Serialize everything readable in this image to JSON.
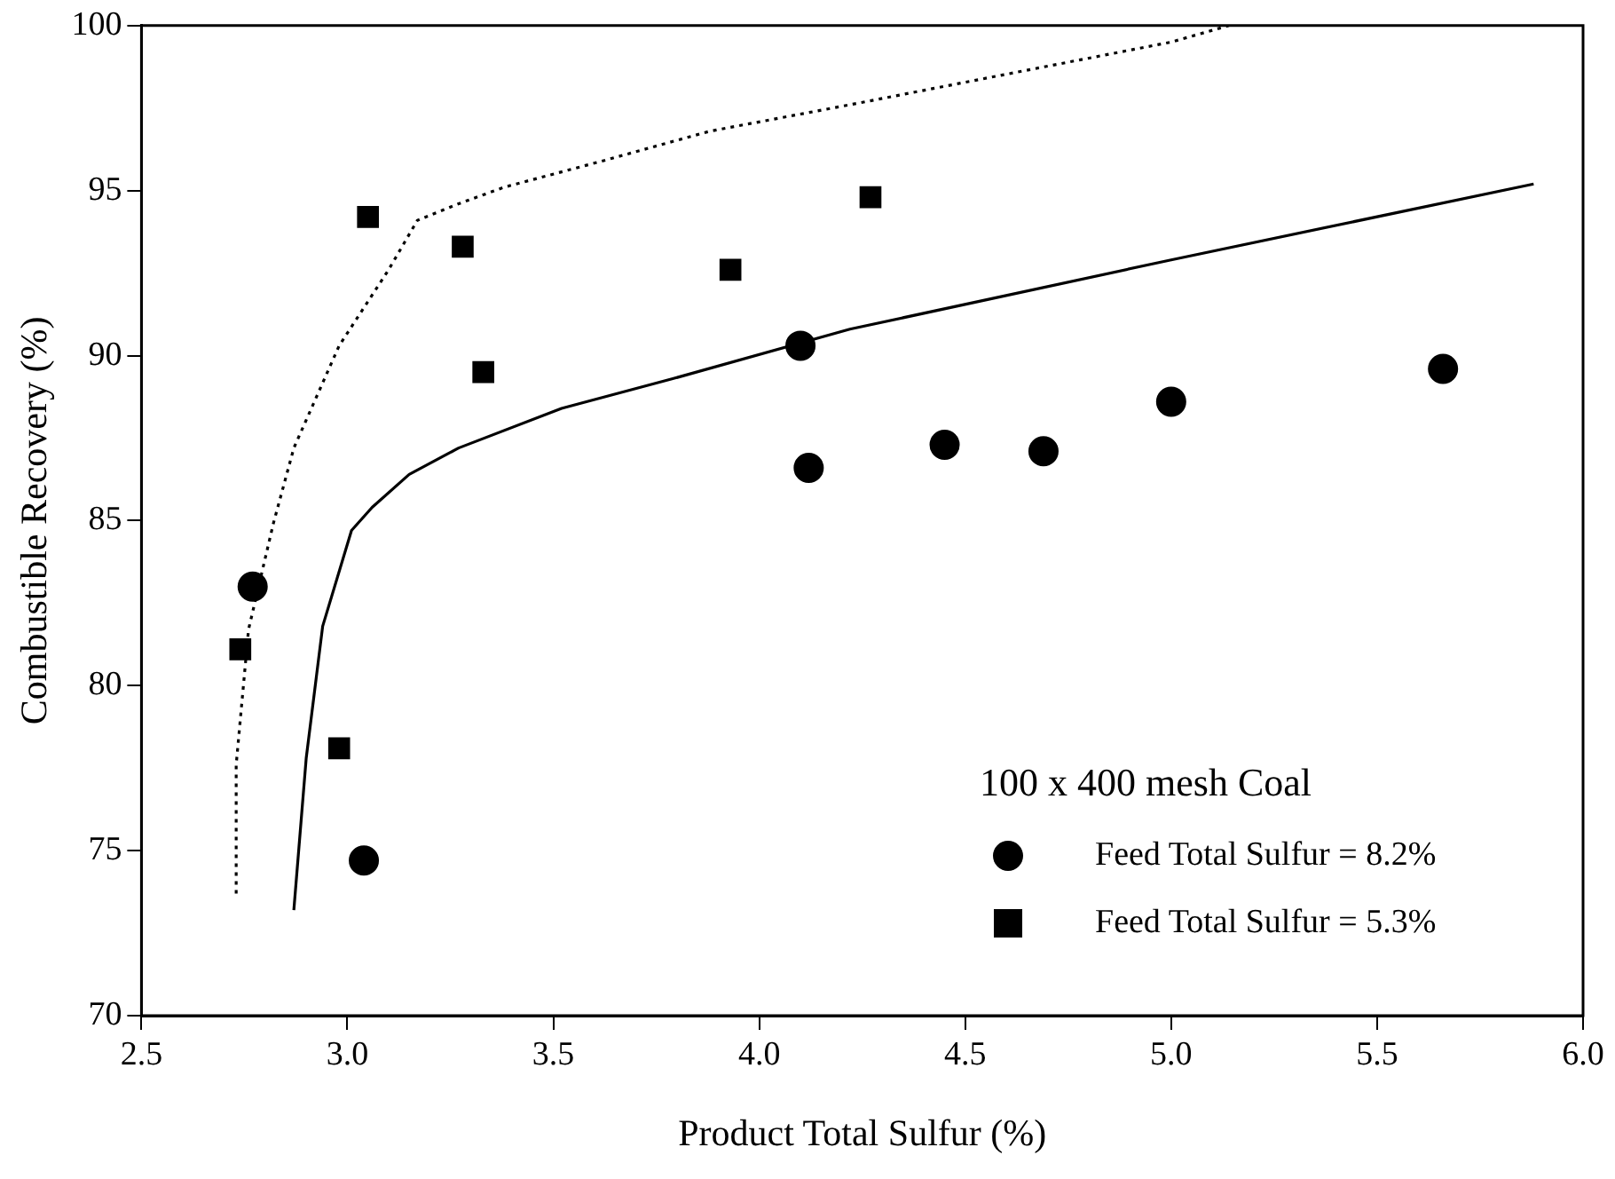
{
  "chart_data": {
    "type": "scatter",
    "xlabel": "Product Total Sulfur (%)",
    "ylabel": "Combustible Recovery (%)",
    "legend_title": "100 x 400 mesh Coal",
    "legend": "bottom right",
    "grid": false,
    "xlim": [
      2.5,
      6.0
    ],
    "xticks": [
      {
        "value": 2.5,
        "label": "2.5"
      },
      {
        "value": 3.0,
        "label": "3.0"
      },
      {
        "value": 3.5,
        "label": "3.5"
      },
      {
        "value": 4.0,
        "label": "4.0"
      },
      {
        "value": 4.5,
        "label": "4.5"
      },
      {
        "value": 5.0,
        "label": "5.0"
      },
      {
        "value": 5.5,
        "label": "5.5"
      },
      {
        "value": 6.0,
        "label": "6.0"
      }
    ],
    "ylim": [
      70,
      100
    ],
    "yticks": [
      70,
      75,
      80,
      85,
      90,
      95,
      100
    ],
    "series": [
      {
        "name": "Feed Total Sulfur = 8.2%",
        "color": "#000000",
        "marker": "circle",
        "x": [
          2.77,
          3.04,
          4.1,
          4.12,
          4.45,
          4.69,
          5.0,
          5.66
        ],
        "values": [
          83.0,
          74.7,
          90.3,
          86.6,
          87.3,
          87.1,
          88.6,
          89.6
        ]
      },
      {
        "name": "Feed Total Sulfur = 5.3%",
        "color": "#000000",
        "marker": "square",
        "x": [
          2.74,
          2.98,
          3.05,
          3.28,
          3.33,
          3.93,
          4.27
        ],
        "values": [
          81.1,
          78.1,
          94.2,
          93.3,
          89.5,
          92.6,
          94.8
        ]
      },
      {
        "type": "line",
        "color": "#000000",
        "line_style": "solid",
        "marker": "none",
        "x": [
          2.87,
          2.9,
          2.94,
          3.01,
          3.06,
          3.15,
          3.27,
          3.52,
          3.79,
          4.22,
          5.0,
          5.88
        ],
        "values": [
          73.2,
          77.8,
          81.8,
          84.7,
          85.4,
          86.4,
          87.2,
          88.4,
          89.3,
          90.8,
          92.9,
          95.2
        ]
      },
      {
        "type": "line",
        "color": "#000000",
        "line_style": "dotted",
        "marker": "none",
        "x": [
          2.73,
          2.73,
          2.76,
          2.82,
          2.87,
          2.98,
          3.1,
          3.17,
          3.27,
          3.38,
          3.62,
          3.88,
          4.22,
          5.0,
          5.14
        ],
        "values": [
          73.7,
          77.6,
          81.7,
          84.9,
          87.2,
          90.3,
          92.6,
          94.1,
          94.6,
          95.1,
          95.9,
          96.8,
          97.6,
          99.5,
          100
        ]
      }
    ]
  }
}
